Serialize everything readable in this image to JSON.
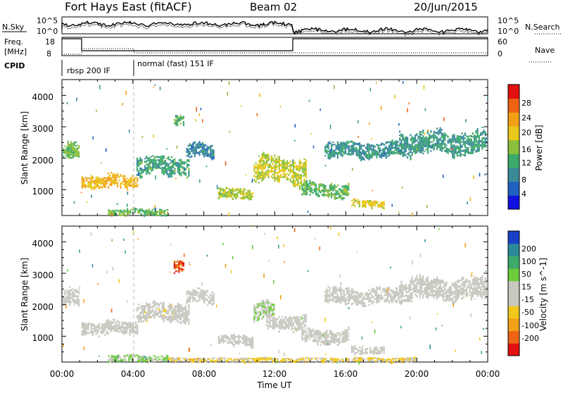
{
  "header": {
    "site": "Fort Hays East (fitACF)",
    "beam": "Beam 02",
    "date": "20/Jun/2015"
  },
  "top_strip": {
    "nsky_label": "N.Sky",
    "nsky_ticks": [
      "10^5",
      "10^0"
    ],
    "nsearch_label": "N.Search",
    "nsearch_ticks": [
      "10^5",
      "10^0"
    ],
    "freq_label_1": "Freq.",
    "freq_label_2": "[MHz]",
    "freq_ticks": [
      "18",
      "8"
    ],
    "nave_label": "Nave",
    "nave_ticks": [
      "60",
      "0"
    ],
    "cpid_label": "CPID",
    "cpid_segments": [
      "rbsp 200 IF",
      "normal (fast) 151 IF"
    ]
  },
  "chart_data": [
    {
      "type": "heatmap",
      "title": "",
      "ylabel": "Slant Range [km]",
      "xlabel": "",
      "xlim": [
        0,
        24
      ],
      "ylim": [
        180,
        4500
      ],
      "y_ticks": [
        "1000",
        "2000",
        "3000",
        "4000"
      ],
      "colorbar": {
        "label": "Power [dB]",
        "ticks": [
          "4",
          "8",
          "12",
          "16",
          "20",
          "24",
          "28"
        ],
        "range": [
          0,
          30
        ],
        "colors": [
          "#1010e0",
          "#2060c0",
          "#3a8a9a",
          "#3caa6a",
          "#8ac03c",
          "#e8c81a",
          "#f2a018",
          "#ee6414",
          "#e21010"
        ]
      },
      "echo_regions": [
        {
          "t0": 0.05,
          "t1": 1.0,
          "r0": 1900,
          "r1": 2500,
          "level": 14
        },
        {
          "t0": 1.1,
          "t1": 4.3,
          "r0": 1050,
          "r1": 1500,
          "level": 20
        },
        {
          "t0": 4.2,
          "t1": 7.2,
          "r0": 1450,
          "r1": 2100,
          "level": 11
        },
        {
          "t0": 7.0,
          "t1": 8.6,
          "r0": 2000,
          "r1": 2500,
          "level": 8
        },
        {
          "t0": 6.3,
          "t1": 6.9,
          "r0": 3000,
          "r1": 3400,
          "level": 12
        },
        {
          "t0": 8.8,
          "t1": 10.8,
          "r0": 700,
          "r1": 1050,
          "level": 16
        },
        {
          "t0": 10.8,
          "t1": 13.8,
          "r0": 1200,
          "r1": 2100,
          "level": 17
        },
        {
          "t0": 13.5,
          "t1": 16.2,
          "r0": 750,
          "r1": 1250,
          "level": 13
        },
        {
          "t0": 16.3,
          "t1": 18.2,
          "r0": 450,
          "r1": 700,
          "level": 18
        },
        {
          "t0": 14.8,
          "t1": 19.2,
          "r0": 2000,
          "r1": 2550,
          "level": 9
        },
        {
          "t0": 19.0,
          "t1": 24.0,
          "r0": 2100,
          "r1": 2900,
          "level": 10
        },
        {
          "t0": 2.6,
          "t1": 6.0,
          "r0": 200,
          "r1": 420,
          "level": 13
        }
      ]
    },
    {
      "type": "heatmap",
      "title": "",
      "ylabel": "Slant Range [km]",
      "xlabel": "Time UT",
      "xlim": [
        0,
        24
      ],
      "ylim": [
        180,
        4500
      ],
      "x_ticks": [
        "00:00",
        "04:00",
        "08:00",
        "12:00",
        "16:00",
        "20:00",
        "00:00"
      ],
      "y_ticks": [
        "1000",
        "2000",
        "3000",
        "4000"
      ],
      "colorbar": {
        "label": "Velocity [m s^-1]",
        "ticks": [
          "200",
          "100",
          "50",
          "15",
          "-15",
          "-50",
          "-100",
          "-200"
        ],
        "range": [
          -250,
          250
        ],
        "colors": [
          "#e21010",
          "#ee6414",
          "#f2a018",
          "#f0c81c",
          "#c8c8c0",
          "#c8c8c0",
          "#6ccc3a",
          "#3caa6a",
          "#2a8a9a",
          "#1a40c8"
        ]
      },
      "echo_regions": [
        {
          "t0": 0.05,
          "t1": 1.0,
          "r0": 1900,
          "r1": 2500,
          "level": 0
        },
        {
          "t0": 1.1,
          "t1": 4.3,
          "r0": 1050,
          "r1": 1500,
          "level": -5
        },
        {
          "t0": 4.2,
          "t1": 7.2,
          "r0": 1450,
          "r1": 2100,
          "level": -8
        },
        {
          "t0": 7.0,
          "t1": 8.6,
          "r0": 2000,
          "r1": 2500,
          "level": 0
        },
        {
          "t0": 6.3,
          "t1": 6.9,
          "r0": 3000,
          "r1": 3400,
          "level": -180
        },
        {
          "t0": 8.8,
          "t1": 10.8,
          "r0": 700,
          "r1": 1050,
          "level": 0
        },
        {
          "t0": 10.8,
          "t1": 12.0,
          "r0": 1500,
          "r1": 2100,
          "level": 40
        },
        {
          "t0": 11.5,
          "t1": 13.8,
          "r0": 1200,
          "r1": 1700,
          "level": 0
        },
        {
          "t0": 13.5,
          "t1": 16.2,
          "r0": 750,
          "r1": 1250,
          "level": 0
        },
        {
          "t0": 16.3,
          "t1": 18.2,
          "r0": 450,
          "r1": 700,
          "level": 0
        },
        {
          "t0": 14.8,
          "t1": 19.2,
          "r0": 2000,
          "r1": 2550,
          "level": 0
        },
        {
          "t0": 19.0,
          "t1": 24.0,
          "r0": 2100,
          "r1": 2900,
          "level": 0
        },
        {
          "t0": 2.6,
          "t1": 6.0,
          "r0": 200,
          "r1": 420,
          "level": 60
        },
        {
          "t0": 6.0,
          "t1": 20.0,
          "r0": 200,
          "r1": 330,
          "level": -60
        }
      ]
    }
  ]
}
